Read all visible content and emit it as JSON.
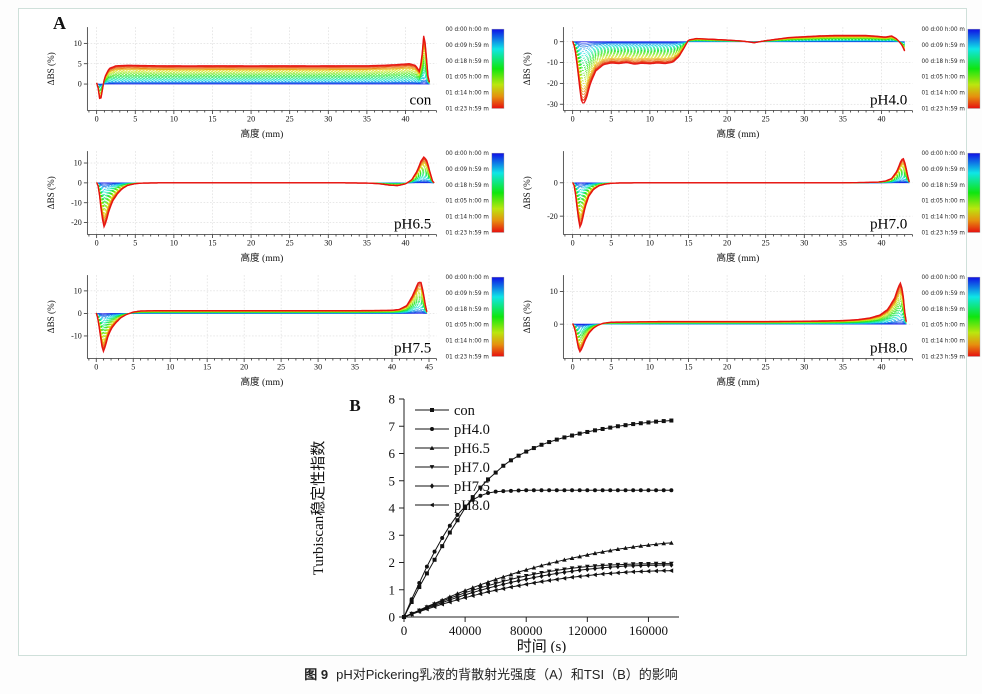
{
  "panel_a_label": "A",
  "panel_b_label": "B",
  "caption": {
    "label": "图 9",
    "text": "pH对Pickering乳液的背散射光强度（A）和TSI（B）的影响"
  },
  "colorbar_labels": [
    "00 d:00 h:00 m",
    "00 d:09 h:59 m",
    "00 d:18 h:59 m",
    "01 d:05 h:00 m",
    "01 d:14 h:00 m",
    "01 d:23 h:59 m"
  ],
  "chart_data": [
    {
      "type": "line",
      "panel": "A",
      "title": "con",
      "xlabel": "高度 (mm)",
      "ylabel": "ΔBS (%)",
      "xlim": [
        -1.2,
        44
      ],
      "ylim": [
        -6.5,
        14
      ],
      "xticks": [
        0,
        5,
        10,
        15,
        20,
        25,
        30,
        35,
        40
      ],
      "yticks": [
        0,
        5,
        10
      ],
      "curve_family": "time scans 00d00h (blue) to 01d23h (red)",
      "profile": [
        [
          0,
          0.3
        ],
        [
          0.2,
          -1
        ],
        [
          0.45,
          -4.6
        ],
        [
          0.7,
          -2
        ],
        [
          1,
          1.5
        ],
        [
          1.6,
          3.8
        ],
        [
          2.5,
          4.5
        ],
        [
          4,
          4.6
        ],
        [
          8,
          4.5
        ],
        [
          12,
          4.45
        ],
        [
          16,
          4.5
        ],
        [
          20,
          4.45
        ],
        [
          24,
          4.5
        ],
        [
          28,
          4.45
        ],
        [
          32,
          4.5
        ],
        [
          35,
          4.5
        ],
        [
          37,
          4.6
        ],
        [
          39,
          4.8
        ],
        [
          40.5,
          5
        ],
        [
          41.3,
          4.6
        ],
        [
          41.8,
          3.2
        ],
        [
          42.1,
          6
        ],
        [
          42.4,
          13
        ],
        [
          42.7,
          7
        ],
        [
          42.9,
          2
        ],
        [
          43.1,
          0.5
        ]
      ]
    },
    {
      "type": "line",
      "panel": "A",
      "title": "pH4.0",
      "xlabel": "高度 (mm)",
      "ylabel": "ΔBS (%)",
      "xlim": [
        -1.2,
        44
      ],
      "ylim": [
        -33,
        7
      ],
      "xticks": [
        0,
        5,
        10,
        15,
        20,
        25,
        30,
        35,
        40
      ],
      "yticks": [
        0,
        -10,
        -20,
        -30
      ],
      "curve_family": "time scans 00d00h (blue) to 01d23h (red)",
      "profile": [
        [
          0,
          0.2
        ],
        [
          0.3,
          -3
        ],
        [
          0.7,
          -15
        ],
        [
          1.1,
          -28
        ],
        [
          1.4,
          -30
        ],
        [
          1.8,
          -27
        ],
        [
          2.3,
          -20
        ],
        [
          3,
          -14
        ],
        [
          4,
          -11
        ],
        [
          5,
          -10.2
        ],
        [
          6,
          -10.5
        ],
        [
          7,
          -10
        ],
        [
          8,
          -10.8
        ],
        [
          9,
          -10.3
        ],
        [
          10,
          -10.6
        ],
        [
          11,
          -10.2
        ],
        [
          12,
          -10.5
        ],
        [
          13,
          -9.8
        ],
        [
          13.8,
          -7
        ],
        [
          14.5,
          -2.5
        ],
        [
          15,
          0.8
        ],
        [
          16,
          1.5
        ],
        [
          18,
          1.2
        ],
        [
          20,
          0.8
        ],
        [
          22,
          0.3
        ],
        [
          23.5,
          -0.5
        ],
        [
          25,
          0.5
        ],
        [
          26,
          1
        ],
        [
          27,
          1.5
        ],
        [
          28,
          2
        ],
        [
          30,
          2.4
        ],
        [
          32,
          2.8
        ],
        [
          34,
          3
        ],
        [
          36,
          3
        ],
        [
          38,
          3
        ],
        [
          39.5,
          2.6
        ],
        [
          40.5,
          2.2
        ],
        [
          41.3,
          2.8
        ],
        [
          41.9,
          1.5
        ],
        [
          42.3,
          0
        ],
        [
          42.7,
          -2
        ],
        [
          43,
          -4.5
        ]
      ]
    },
    {
      "type": "line",
      "panel": "A",
      "title": "pH6.5",
      "xlabel": "高度 (mm)",
      "ylabel": "ΔBS (%)",
      "xlim": [
        -1.2,
        44
      ],
      "ylim": [
        -26,
        16
      ],
      "xticks": [
        0,
        5,
        10,
        15,
        20,
        25,
        30,
        35,
        40
      ],
      "yticks": [
        10,
        0,
        -10,
        -20
      ],
      "curve_family": "time scans 00d00h (blue) to 01d23h (red)",
      "profile": [
        [
          0,
          0.2
        ],
        [
          0.25,
          -2
        ],
        [
          0.6,
          -14
        ],
        [
          0.9,
          -22.5
        ],
        [
          1.2,
          -20
        ],
        [
          1.6,
          -14
        ],
        [
          2.1,
          -9
        ],
        [
          2.7,
          -5.5
        ],
        [
          3.3,
          -3
        ],
        [
          4,
          -1.3
        ],
        [
          5,
          -0.4
        ],
        [
          6,
          -0.1
        ],
        [
          8,
          0
        ],
        [
          12,
          0
        ],
        [
          16,
          0
        ],
        [
          20,
          0
        ],
        [
          24,
          0
        ],
        [
          28,
          0
        ],
        [
          32,
          0
        ],
        [
          35,
          -0.1
        ],
        [
          36.5,
          -0.4
        ],
        [
          38,
          -1.2
        ],
        [
          39,
          -1.4
        ],
        [
          40,
          -0.5
        ],
        [
          40.8,
          1.5
        ],
        [
          41.5,
          6
        ],
        [
          42,
          11
        ],
        [
          42.4,
          13.2
        ],
        [
          42.8,
          11
        ],
        [
          43.2,
          5
        ],
        [
          43.5,
          1
        ],
        [
          43.7,
          0
        ]
      ]
    },
    {
      "type": "line",
      "panel": "A",
      "title": "pH7.0",
      "xlabel": "高度 (mm)",
      "ylabel": "ΔBS (%)",
      "xlim": [
        -1.2,
        44
      ],
      "ylim": [
        -31,
        19
      ],
      "xticks": [
        0,
        5,
        10,
        15,
        20,
        25,
        30,
        35,
        40
      ],
      "yticks": [
        0,
        -20
      ],
      "curve_family": "time scans 00d00h (blue) to 01d23h (red)",
      "profile": [
        [
          0,
          0.2
        ],
        [
          0.25,
          -2
        ],
        [
          0.6,
          -16
        ],
        [
          0.9,
          -27
        ],
        [
          1.2,
          -24
        ],
        [
          1.6,
          -15
        ],
        [
          2.1,
          -8
        ],
        [
          2.7,
          -4
        ],
        [
          3.4,
          -1.8
        ],
        [
          4.2,
          -0.8
        ],
        [
          5,
          -0.3
        ],
        [
          6,
          -0.1
        ],
        [
          10,
          0
        ],
        [
          15,
          0
        ],
        [
          20,
          0
        ],
        [
          25,
          0
        ],
        [
          30,
          0
        ],
        [
          35,
          0
        ],
        [
          38,
          0.2
        ],
        [
          39.5,
          0.4
        ],
        [
          40.5,
          1
        ],
        [
          41.3,
          2.5
        ],
        [
          42,
          7
        ],
        [
          42.5,
          13
        ],
        [
          42.8,
          15
        ],
        [
          43.1,
          11
        ],
        [
          43.4,
          4
        ],
        [
          43.6,
          0.5
        ]
      ]
    },
    {
      "type": "line",
      "panel": "A",
      "title": "pH7.5",
      "xlabel": "高度 (mm)",
      "ylabel": "ΔBS (%)",
      "xlim": [
        -1.2,
        46
      ],
      "ylim": [
        -20,
        17
      ],
      "xticks": [
        0,
        5,
        10,
        15,
        20,
        25,
        30,
        35,
        40,
        45
      ],
      "yticks": [
        10,
        0,
        -10
      ],
      "curve_family": "time scans 00d00h (blue) to 01d23h (red)",
      "profile": [
        [
          0,
          0.2
        ],
        [
          0.25,
          -2.5
        ],
        [
          0.6,
          -11
        ],
        [
          0.9,
          -17.5
        ],
        [
          1.2,
          -15
        ],
        [
          1.6,
          -10
        ],
        [
          2.1,
          -6.5
        ],
        [
          2.7,
          -4
        ],
        [
          3.3,
          -2
        ],
        [
          4,
          -0.6
        ],
        [
          5,
          0.6
        ],
        [
          6,
          1.1
        ],
        [
          8,
          1.2
        ],
        [
          12,
          1.2
        ],
        [
          16,
          1.2
        ],
        [
          20,
          1.2
        ],
        [
          25,
          1.2
        ],
        [
          30,
          1.2
        ],
        [
          35,
          1.2
        ],
        [
          38,
          1.3
        ],
        [
          40,
          1.4
        ],
        [
          41,
          1.8
        ],
        [
          42,
          3.5
        ],
        [
          42.8,
          8
        ],
        [
          43.5,
          13.5
        ],
        [
          43.9,
          14
        ],
        [
          44.2,
          10
        ],
        [
          44.5,
          4
        ],
        [
          44.7,
          0.8
        ]
      ]
    },
    {
      "type": "line",
      "panel": "A",
      "title": "pH8.0",
      "xlabel": "高度 (mm)",
      "ylabel": "ΔBS (%)",
      "xlim": [
        -1.2,
        44
      ],
      "ylim": [
        -10.5,
        15
      ],
      "xticks": [
        0,
        5,
        10,
        15,
        20,
        25,
        30,
        35,
        40
      ],
      "yticks": [
        10,
        0
      ],
      "curve_family": "time scans 00d00h (blue) to 01d23h (red)",
      "profile": [
        [
          0,
          0.2
        ],
        [
          0.3,
          -1.5
        ],
        [
          0.7,
          -7
        ],
        [
          0.95,
          -8.5
        ],
        [
          1.2,
          -7.5
        ],
        [
          1.6,
          -5
        ],
        [
          2.1,
          -2.8
        ],
        [
          2.7,
          -1.2
        ],
        [
          3.3,
          -0.3
        ],
        [
          4,
          0.3
        ],
        [
          5,
          0.6
        ],
        [
          8,
          0.7
        ],
        [
          12,
          0.8
        ],
        [
          16,
          0.8
        ],
        [
          20,
          0.8
        ],
        [
          25,
          0.8
        ],
        [
          30,
          0.9
        ],
        [
          33,
          1
        ],
        [
          35,
          1.1
        ],
        [
          37,
          1.4
        ],
        [
          38.5,
          1.9
        ],
        [
          39.8,
          2.8
        ],
        [
          40.8,
          4.5
        ],
        [
          41.7,
          8
        ],
        [
          42.2,
          11.5
        ],
        [
          42.5,
          12.8
        ],
        [
          42.8,
          9
        ],
        [
          43,
          4
        ],
        [
          43.2,
          0.8
        ]
      ]
    },
    {
      "type": "line",
      "panel": "B",
      "title": "",
      "xlabel": "时间 (s)",
      "ylabel": "Turbiscan稳定性指数",
      "xlim": [
        0,
        180000
      ],
      "ylim": [
        0,
        8
      ],
      "xticks": [
        0,
        40000,
        80000,
        120000,
        160000
      ],
      "yticks": [
        0,
        1,
        2,
        3,
        4,
        5,
        6,
        7,
        8
      ],
      "legend_position": "top-left",
      "x": [
        0,
        5000,
        10000,
        15000,
        20000,
        25000,
        30000,
        35000,
        40000,
        45000,
        50000,
        55000,
        60000,
        65000,
        70000,
        75000,
        80000,
        85000,
        90000,
        95000,
        100000,
        105000,
        110000,
        115000,
        120000,
        125000,
        130000,
        135000,
        140000,
        145000,
        150000,
        155000,
        160000,
        165000,
        170000,
        175000
      ],
      "series": [
        {
          "name": "con",
          "marker": "square",
          "y": [
            0,
            0.55,
            1.1,
            1.6,
            2.1,
            2.6,
            3.1,
            3.55,
            4.0,
            4.4,
            4.75,
            5.05,
            5.3,
            5.55,
            5.75,
            5.92,
            6.07,
            6.2,
            6.32,
            6.42,
            6.51,
            6.59,
            6.66,
            6.73,
            6.79,
            6.85,
            6.9,
            6.95,
            7.0,
            7.04,
            7.08,
            7.11,
            7.14,
            7.17,
            7.19,
            7.21
          ]
        },
        {
          "name": "pH4.0",
          "marker": "circle",
          "y": [
            0,
            0.65,
            1.25,
            1.85,
            2.4,
            2.9,
            3.35,
            3.75,
            4.05,
            4.3,
            4.45,
            4.55,
            4.6,
            4.62,
            4.63,
            4.64,
            4.65,
            4.65,
            4.65,
            4.65,
            4.65,
            4.65,
            4.65,
            4.65,
            4.65,
            4.65,
            4.65,
            4.65,
            4.65,
            4.65,
            4.65,
            4.65,
            4.65,
            4.65,
            4.65,
            4.65
          ]
        },
        {
          "name": "pH6.5",
          "marker": "triangle-up",
          "y": [
            0,
            0.12,
            0.25,
            0.38,
            0.5,
            0.62,
            0.74,
            0.86,
            0.97,
            1.08,
            1.18,
            1.28,
            1.38,
            1.47,
            1.56,
            1.65,
            1.73,
            1.81,
            1.89,
            1.96,
            2.03,
            2.1,
            2.16,
            2.22,
            2.28,
            2.34,
            2.39,
            2.44,
            2.49,
            2.53,
            2.57,
            2.61,
            2.64,
            2.67,
            2.7,
            2.72
          ]
        },
        {
          "name": "pH7.0",
          "marker": "triangle-down",
          "y": [
            0,
            0.12,
            0.24,
            0.36,
            0.47,
            0.58,
            0.69,
            0.79,
            0.89,
            0.98,
            1.07,
            1.15,
            1.23,
            1.31,
            1.38,
            1.45,
            1.51,
            1.57,
            1.62,
            1.67,
            1.71,
            1.75,
            1.79,
            1.82,
            1.85,
            1.87,
            1.89,
            1.91,
            1.92,
            1.93,
            1.94,
            1.95,
            1.95,
            1.96,
            1.96,
            1.96
          ]
        },
        {
          "name": "pH7.5",
          "marker": "diamond",
          "y": [
            0,
            0.11,
            0.22,
            0.33,
            0.43,
            0.53,
            0.63,
            0.72,
            0.81,
            0.9,
            0.98,
            1.06,
            1.13,
            1.2,
            1.27,
            1.33,
            1.39,
            1.45,
            1.5,
            1.55,
            1.6,
            1.64,
            1.68,
            1.72,
            1.75,
            1.78,
            1.81,
            1.83,
            1.85,
            1.87,
            1.88,
            1.89,
            1.9,
            1.9,
            1.91,
            1.91
          ]
        },
        {
          "name": "pH8.0",
          "marker": "triangle-left",
          "y": [
            0,
            0.1,
            0.2,
            0.29,
            0.38,
            0.47,
            0.55,
            0.63,
            0.71,
            0.78,
            0.85,
            0.92,
            0.98,
            1.04,
            1.1,
            1.15,
            1.2,
            1.25,
            1.3,
            1.34,
            1.38,
            1.42,
            1.46,
            1.49,
            1.52,
            1.55,
            1.58,
            1.6,
            1.62,
            1.64,
            1.66,
            1.67,
            1.68,
            1.69,
            1.7,
            1.7
          ]
        }
      ]
    }
  ]
}
